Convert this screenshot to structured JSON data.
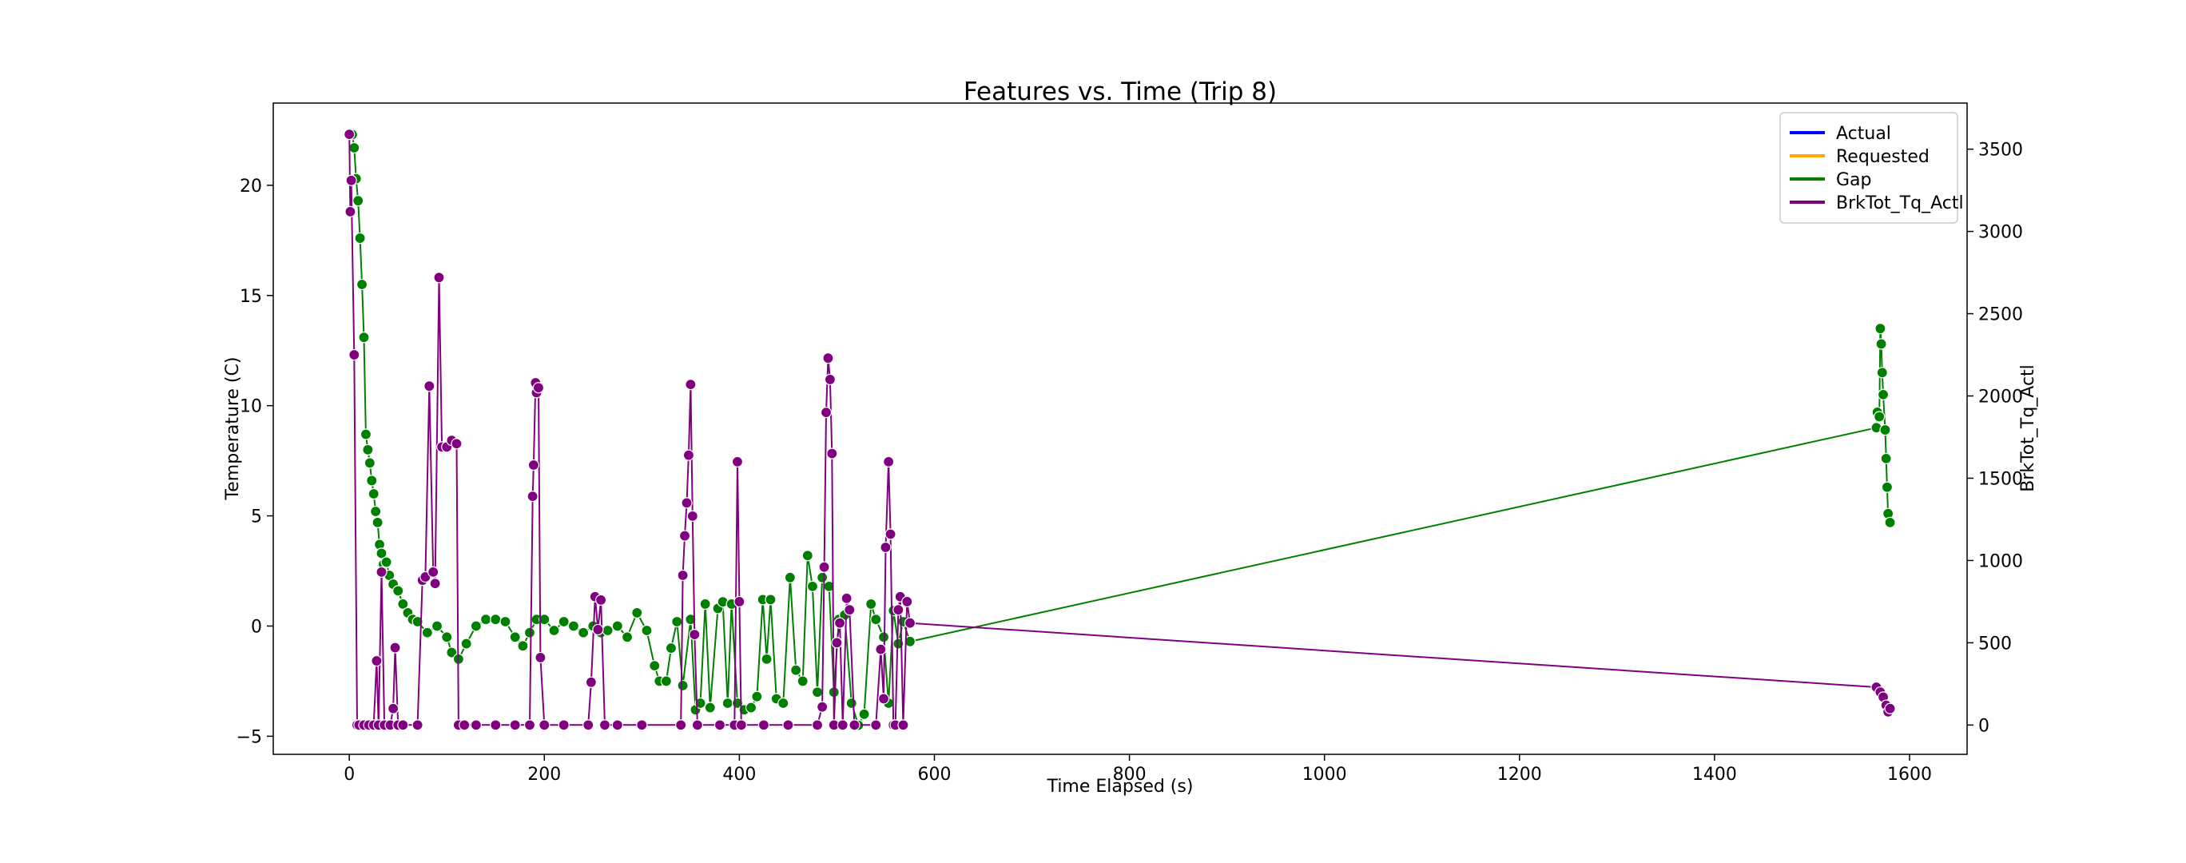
{
  "chart_data": {
    "type": "line",
    "title": "Features vs. Time (Trip 8)",
    "x_label": "Time Elapsed (s)",
    "y_label": "Temperature (C)",
    "y2_label": "BrkTot_Tq_Actl",
    "xlim": [
      -78,
      1659
    ],
    "ylim": [
      -5.82,
      23.73
    ],
    "y2lim": [
      -178,
      3780
    ],
    "xticks": [
      0,
      200,
      400,
      600,
      800,
      1000,
      1200,
      1400,
      1600
    ],
    "yticks": [
      {
        "value": -5,
        "label": "−5"
      },
      0,
      5,
      10,
      15,
      20
    ],
    "y2ticks": [
      0,
      500,
      1000,
      1500,
      2000,
      2500,
      3000,
      3500
    ],
    "legend": "upper right",
    "series": [
      {
        "name": "Actual",
        "color": "#0000ff",
        "x": [],
        "values": []
      },
      {
        "name": "Requested",
        "color": "#ffa500",
        "x": [],
        "values": []
      },
      {
        "name": "Gap",
        "color": "#008000",
        "x": [
          3,
          5,
          7,
          9,
          11,
          13,
          15,
          17,
          19,
          21,
          23,
          25,
          27,
          29,
          31,
          33,
          35,
          38,
          41,
          45,
          50,
          55,
          60,
          65,
          70,
          80,
          90,
          100,
          105,
          112,
          120,
          130,
          140,
          150,
          160,
          170,
          178,
          185,
          192,
          200,
          210,
          220,
          230,
          240,
          250,
          258,
          265,
          275,
          285,
          295,
          305,
          313,
          318,
          325,
          330,
          336,
          342,
          350,
          355,
          360,
          365,
          370,
          378,
          383,
          388,
          392,
          398,
          405,
          412,
          418,
          424,
          428,
          432,
          438,
          445,
          452,
          458,
          465,
          470,
          475,
          480,
          485,
          492,
          497,
          502,
          508,
          515,
          522,
          528,
          535,
          540,
          548,
          553,
          558,
          563,
          568,
          575,
          1566,
          1567,
          1569,
          1570,
          1571,
          1572,
          1573,
          1575,
          1576,
          1577,
          1578,
          1580
        ],
        "values": [
          22.3,
          21.7,
          20.3,
          19.3,
          17.6,
          15.5,
          13.1,
          8.7,
          8.0,
          7.4,
          6.6,
          6.0,
          5.2,
          4.7,
          3.7,
          3.3,
          2.8,
          2.9,
          2.3,
          1.9,
          1.6,
          1.0,
          0.6,
          0.3,
          0.2,
          -0.3,
          0.0,
          -0.5,
          -1.2,
          -1.5,
          -0.8,
          0.0,
          0.3,
          0.3,
          0.2,
          -0.5,
          -0.9,
          -0.3,
          0.3,
          0.3,
          -0.2,
          0.2,
          0.0,
          -0.3,
          0.0,
          -0.3,
          -0.2,
          0.0,
          -0.5,
          0.6,
          -0.2,
          -1.8,
          -2.5,
          -2.5,
          -1.0,
          0.2,
          -2.7,
          0.3,
          -3.8,
          -3.5,
          1.0,
          -3.7,
          0.8,
          1.1,
          -3.5,
          1.0,
          -3.5,
          -3.8,
          -3.7,
          -3.2,
          1.2,
          -1.5,
          1.2,
          -3.3,
          -3.5,
          2.2,
          -2.0,
          -2.5,
          3.2,
          1.8,
          -3.0,
          2.2,
          1.8,
          -3.0,
          0.3,
          0.5,
          -3.5,
          -4.5,
          -4.0,
          1.0,
          0.3,
          -0.5,
          -3.5,
          0.7,
          -0.8,
          0.2,
          -0.7,
          9.0,
          9.7,
          9.5,
          13.5,
          12.8,
          11.5,
          10.5,
          8.9,
          7.6,
          6.3,
          5.1,
          4.7
        ]
      },
      {
        "name": "BrkTot_Tq_Actl",
        "color": "#800080",
        "axis": "y2",
        "x": [
          0,
          1,
          2,
          5,
          8,
          10,
          15,
          20,
          25,
          28,
          30,
          33,
          36,
          42,
          45,
          47,
          50,
          55,
          70,
          75,
          78,
          82,
          86,
          88,
          92,
          95,
          100,
          105,
          110,
          112,
          118,
          130,
          150,
          170,
          185,
          188,
          189,
          191,
          192,
          194,
          196,
          200,
          220,
          245,
          248,
          252,
          255,
          258,
          262,
          275,
          300,
          340,
          342,
          344,
          346,
          348,
          350,
          352,
          354,
          357,
          380,
          395,
          398,
          400,
          402,
          425,
          450,
          480,
          485,
          487,
          489,
          491,
          493,
          495,
          497,
          500,
          503,
          506,
          510,
          513,
          518,
          540,
          545,
          548,
          550,
          553,
          555,
          558,
          560,
          563,
          565,
          568,
          572,
          575,
          1566,
          1570,
          1573,
          1576,
          1578,
          1580
        ],
        "values": [
          3590,
          3120,
          3310,
          2250,
          0,
          0,
          0,
          0,
          0,
          390,
          0,
          930,
          0,
          0,
          100,
          470,
          0,
          0,
          0,
          880,
          900,
          2060,
          930,
          860,
          2720,
          1690,
          1690,
          1730,
          1710,
          0,
          0,
          0,
          0,
          0,
          0,
          1390,
          1580,
          2080,
          2020,
          2050,
          410,
          0,
          0,
          0,
          260,
          780,
          580,
          760,
          0,
          0,
          0,
          0,
          910,
          1150,
          1350,
          1640,
          2070,
          1270,
          550,
          0,
          0,
          0,
          1600,
          750,
          0,
          0,
          0,
          0,
          110,
          960,
          1900,
          2230,
          2100,
          1650,
          0,
          500,
          620,
          0,
          770,
          700,
          0,
          0,
          460,
          160,
          1080,
          1600,
          1160,
          0,
          0,
          700,
          780,
          0,
          750,
          620,
          230,
          200,
          170,
          120,
          80,
          100
        ]
      }
    ]
  }
}
